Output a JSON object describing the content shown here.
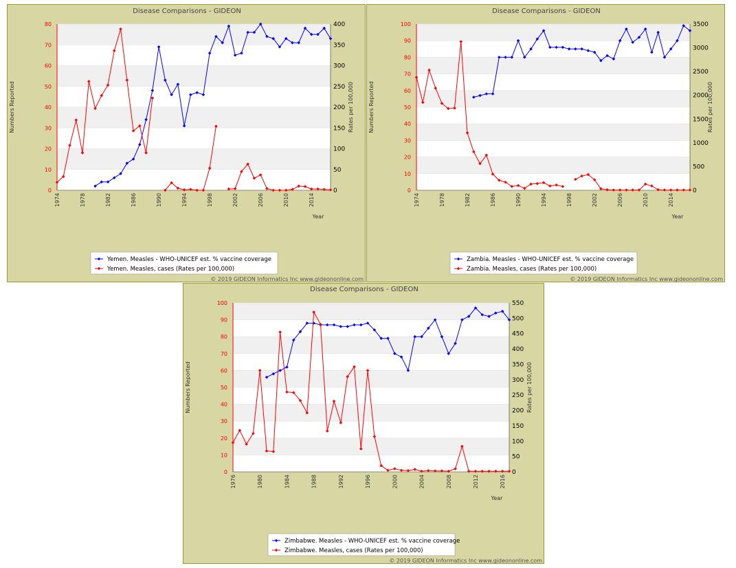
{
  "chart_data": [
    {
      "type": "line",
      "title": "Disease Comparisons - GIDEON",
      "ylabel": "Numbers Reported",
      "y2label": "Rates per 100,000",
      "xlabel": "Year",
      "ylim": [
        0,
        80
      ],
      "y2lim": [
        0,
        400
      ],
      "xlim": [
        1974,
        2017
      ],
      "yticks": [
        0,
        10,
        20,
        30,
        40,
        50,
        60,
        70,
        80
      ],
      "y2ticks": [
        0,
        50,
        100,
        150,
        200,
        250,
        300,
        350,
        400
      ],
      "xticks": [
        "1974",
        "1978",
        "1982",
        "1986",
        "1990",
        "1994",
        "1998",
        "2002",
        "2006",
        "2010",
        "2014"
      ],
      "copyright": "© 2019 GIDEON Informatics Inc www.gideononline.com",
      "series": [
        {
          "name": "Yemen. Measles - WHO-UNICEF est. % vaccine coverage",
          "color": "#0000ff",
          "axis": "left",
          "x": [
            1980,
            1981,
            1982,
            1983,
            1984,
            1985,
            1986,
            1987,
            1988,
            1989,
            1990,
            1991,
            1992,
            1993,
            1994,
            1995,
            1996,
            1997,
            1998,
            1999,
            2000,
            2001,
            2002,
            2003,
            2004,
            2005,
            2006,
            2007,
            2008,
            2009,
            2010,
            2011,
            2012,
            2013,
            2014,
            2015,
            2016,
            2017
          ],
          "values": [
            2,
            4,
            4,
            6,
            8,
            13,
            15,
            22,
            34,
            48,
            69,
            53,
            46,
            51,
            31,
            46,
            47,
            46,
            66,
            74,
            71,
            79,
            65,
            66,
            76,
            76,
            80,
            74,
            73,
            69,
            73,
            71,
            71,
            78,
            75,
            75,
            78,
            73
          ]
        },
        {
          "name": "Yemen. Measles, cases (Rates per 100,000)",
          "color": "#ff0000",
          "axis": "right",
          "segments": [
            {
              "x": [
                1974,
                1975,
                1976,
                1977,
                1978,
                1979,
                1980,
                1981,
                1982,
                1983,
                1984,
                1985,
                1986,
                1987,
                1988,
                1989
              ],
              "values": [
                19,
                33,
                108,
                169,
                90,
                262,
                197,
                228,
                253,
                336,
                388,
                265,
                143,
                155,
                90,
                222
              ]
            },
            {
              "x": [
                1991,
                1992,
                1993,
                1994,
                1995,
                1996,
                1997,
                1998,
                1999
              ],
              "values": [
                0,
                18,
                5,
                1,
                2,
                0,
                0,
                53,
                154
              ]
            },
            {
              "x": [
                2001,
                2002,
                2003,
                2004,
                2005,
                2006,
                2007,
                2008,
                2009,
                2010,
                2011,
                2012,
                2013,
                2014,
                2015,
                2016,
                2017
              ],
              "values": [
                3,
                4,
                45,
                63,
                29,
                37,
                4,
                0,
                0,
                0,
                2,
                10,
                9,
                3,
                3,
                2,
                1
              ]
            }
          ]
        }
      ],
      "legend": "bottom-center"
    },
    {
      "type": "line",
      "title": "Disease Comparisons - GIDEON",
      "ylabel": "Numbers Reported",
      "y2label": "Rates per 100,000",
      "xlabel": "Year",
      "ylim": [
        0,
        100
      ],
      "y2lim": [
        0,
        3500
      ],
      "xlim": [
        1974,
        2017
      ],
      "yticks": [
        0,
        10,
        20,
        30,
        40,
        50,
        60,
        70,
        80,
        90,
        100
      ],
      "y2ticks": [
        0,
        500,
        1000,
        1500,
        2000,
        2500,
        3000,
        3500
      ],
      "xticks": [
        "1974",
        "1978",
        "1982",
        "1986",
        "1990",
        "1994",
        "1998",
        "2002",
        "2006",
        "2010",
        "2014"
      ],
      "copyright": "© 2019 GIDEON Informatics Inc www.gideononline.com",
      "series": [
        {
          "name": "Zambia. Measles - WHO-UNICEF est. % vaccine coverage",
          "color": "#0000ff",
          "axis": "left",
          "x": [
            1983,
            1984,
            1985,
            1986,
            1987,
            1988,
            1989,
            1990,
            1991,
            1992,
            1993,
            1994,
            1995,
            1996,
            1997,
            1998,
            1999,
            2000,
            2001,
            2002,
            2003,
            2004,
            2005,
            2006,
            2007,
            2008,
            2009,
            2010,
            2011,
            2012,
            2013,
            2014,
            2015,
            2016,
            2017
          ],
          "values": [
            56,
            57,
            58,
            58,
            80,
            80,
            80,
            90,
            80,
            85,
            91,
            96,
            86,
            86,
            86,
            85,
            85,
            85,
            84,
            83,
            78,
            81,
            79,
            90,
            97,
            89,
            92,
            97,
            83,
            95,
            80,
            85,
            90,
            99,
            96
          ]
        },
        {
          "name": "Zambia. Measles, cases (Rates per 100,000)",
          "color": "#ff0000",
          "axis": "right",
          "segments": [
            {
              "x": [
                1974,
                1975,
                1976,
                1977,
                1978,
                1979,
                1980,
                1981,
                1982,
                1983,
                1984,
                1985,
                1986,
                1987,
                1988,
                1989,
                1990,
                1991,
                1992,
                1993,
                1994,
                1995,
                1996,
                1997
              ],
              "values": [
                2380,
                1850,
                2530,
                2150,
                1830,
                1720,
                1730,
                3130,
                1210,
                810,
                560,
                740,
                340,
                210,
                170,
                80,
                100,
                40,
                130,
                140,
                160,
                90,
                110,
                80
              ]
            },
            {
              "x": [
                1999,
                2000,
                2001,
                2002,
                2003,
                2004,
                2005,
                2006,
                2007,
                2008,
                2009,
                2010,
                2011,
                2012,
                2013,
                2014,
                2015,
                2016,
                2017
              ],
              "values": [
                230,
                300,
                330,
                220,
                30,
                10,
                5,
                5,
                5,
                5,
                5,
                130,
                90,
                10,
                5,
                5,
                5,
                5,
                5
              ]
            }
          ]
        }
      ],
      "legend": "bottom-center"
    },
    {
      "type": "line",
      "title": "Disease Comparisons - GIDEON",
      "ylabel": "Numbers Reported",
      "y2label": "Rates per 100,000",
      "xlabel": "Year",
      "ylim": [
        0,
        100
      ],
      "y2lim": [
        0,
        550
      ],
      "xlim": [
        1976,
        2017
      ],
      "yticks": [
        0,
        10,
        20,
        30,
        40,
        50,
        60,
        70,
        80,
        90,
        100
      ],
      "y2ticks": [
        0,
        50,
        100,
        150,
        200,
        250,
        300,
        350,
        400,
        450,
        500,
        550
      ],
      "xticks": [
        "1976",
        "1980",
        "1984",
        "1988",
        "1992",
        "1996",
        "2000",
        "2004",
        "2008",
        "2012",
        "2016"
      ],
      "copyright": "© 2019 GIDEON Informatics Inc www.gideononline.com",
      "series": [
        {
          "name": "Zimbabwe. Measles - WHO-UNICEF est. % vaccine coverage",
          "color": "#0000ff",
          "axis": "left",
          "x": [
            1981,
            1982,
            1983,
            1984,
            1985,
            1986,
            1987,
            1988,
            1989,
            1990,
            1991,
            1992,
            1993,
            1994,
            1995,
            1996,
            1997,
            1998,
            1999,
            2000,
            2001,
            2002,
            2003,
            2004,
            2005,
            2006,
            2007,
            2008,
            2009,
            2010,
            2011,
            2012,
            2013,
            2014,
            2015,
            2016,
            2017
          ],
          "values": [
            56,
            58,
            60,
            62,
            78,
            83,
            88,
            88,
            87,
            87,
            87,
            86,
            86,
            87,
            87,
            88,
            84,
            79,
            79,
            70,
            68,
            60,
            80,
            80,
            85,
            90,
            80,
            70,
            76,
            90,
            92,
            97,
            93,
            92,
            94,
            95,
            90
          ]
        },
        {
          "name": "Zimbabwe. Measles, cases (Rates per 100,000)",
          "color": "#ff0000",
          "axis": "right",
          "segments": [
            {
              "x": [
                1976,
                1977,
                1978,
                1979,
                1980,
                1981,
                1982,
                1983,
                1984,
                1985,
                1986,
                1987,
                1988,
                1989,
                1990,
                1991,
                1992,
                1993,
                1994,
                1995,
                1996,
                1997,
                1998,
                1999,
                2000,
                2001,
                2002,
                2003,
                2004,
                2005,
                2006,
                2007,
                2008,
                2009,
                2010,
                2011,
                2012,
                2013,
                2014,
                2015,
                2016,
                2017
              ],
              "values": [
                95,
                135,
                90,
                125,
                330,
                68,
                66,
                455,
                260,
                258,
                232,
                192,
                520,
                480,
                133,
                230,
                160,
                310,
                342,
                75,
                330,
                115,
                20,
                5,
                10,
                5,
                4,
                8,
                2,
                4,
                3,
                3,
                2,
                10,
                83,
                2,
                2,
                2,
                2,
                2,
                2,
                2
              ]
            }
          ]
        }
      ],
      "legend": "bottom-center"
    }
  ]
}
